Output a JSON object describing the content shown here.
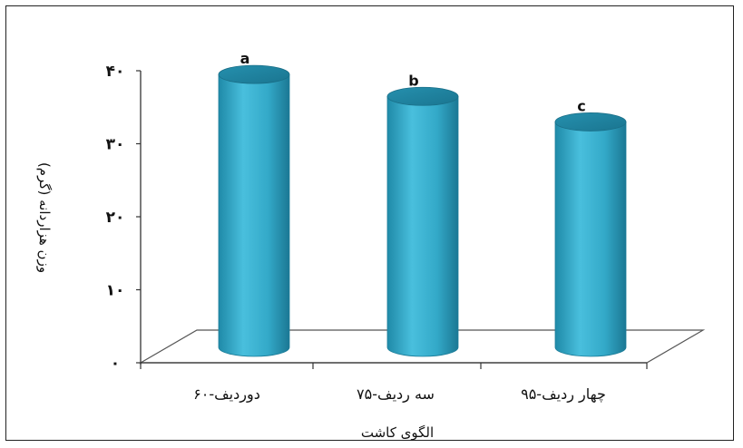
{
  "chart_data": {
    "type": "bar",
    "categories": [
      "دوردیف-۶۰",
      "سه ردیف-۷۵",
      "چهار ردیف-۹۵"
    ],
    "values": [
      37.5,
      34.5,
      31
    ],
    "significance_letters": [
      "a",
      "b",
      "c"
    ],
    "ylim": [
      0,
      40
    ],
    "yticks": [
      "۰",
      "۱۰",
      "۲۰",
      "۳۰",
      "۴۰"
    ],
    "ytick_values": [
      0,
      10,
      20,
      30,
      40
    ],
    "xlabel": "الگوی کاشت",
    "ylabel": "وزن هزاردانه (گرم)",
    "bar_color": "#33a9c8",
    "grid": false
  }
}
